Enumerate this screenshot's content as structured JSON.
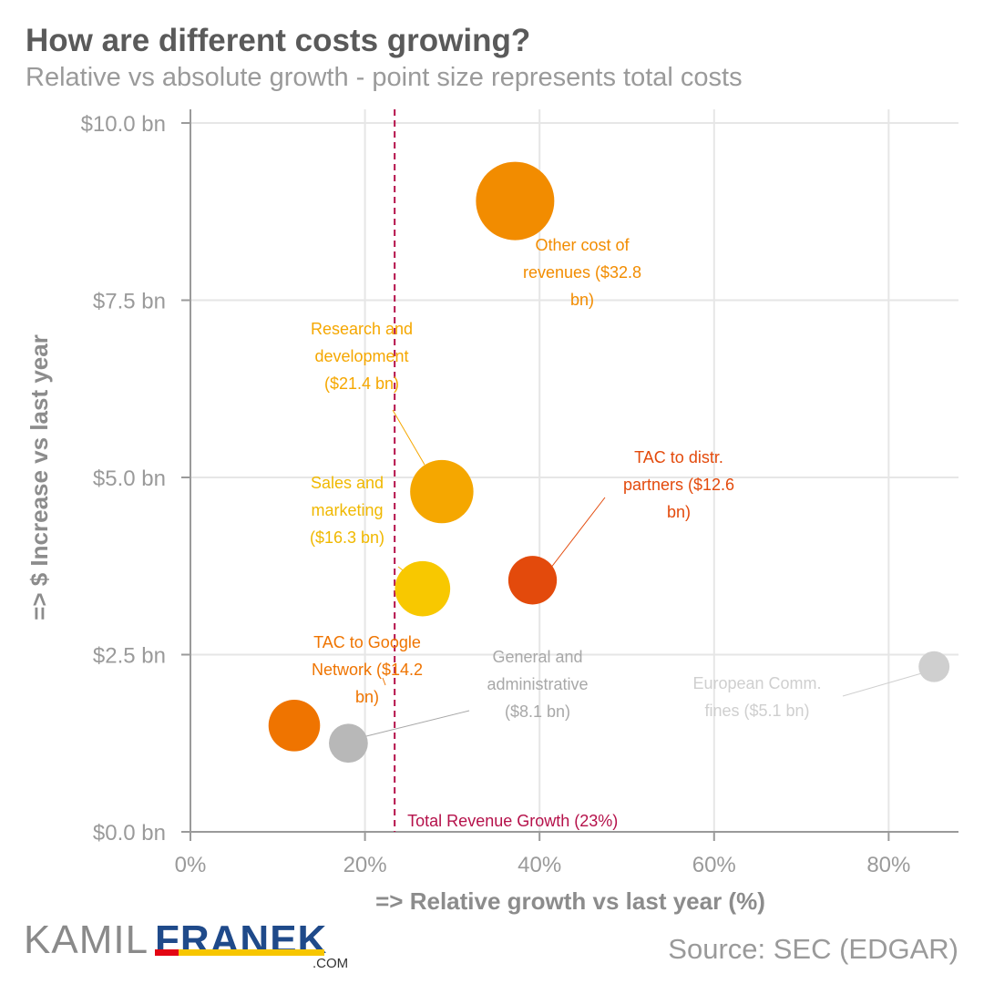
{
  "header": {
    "title": "How are different costs growing?",
    "subtitle": "Relative vs absolute growth - point size represents total costs"
  },
  "footer": {
    "source": "Source: SEC (EDGAR)",
    "logo_left": "KAMIL",
    "logo_right": "FRANEK",
    "logo_suffix": ".COM"
  },
  "chart_data": {
    "type": "scatter",
    "xlabel": "=> Relative growth vs last year (%)",
    "ylabel": "=> $ Increase vs last year",
    "xlim": [
      0,
      88
    ],
    "ylim": [
      0,
      10
    ],
    "x_ticks": [
      {
        "value": 0,
        "label": "0%"
      },
      {
        "value": 20,
        "label": "20%"
      },
      {
        "value": 40,
        "label": "40%"
      },
      {
        "value": 60,
        "label": "60%"
      },
      {
        "value": 80,
        "label": "80%"
      }
    ],
    "y_ticks": [
      {
        "value": 0,
        "label": "$0.0 bn"
      },
      {
        "value": 2.5,
        "label": "$2.5 bn"
      },
      {
        "value": 5,
        "label": "$5.0 bn"
      },
      {
        "value": 7.5,
        "label": "$7.5 bn"
      },
      {
        "value": 10,
        "label": "$10.0 bn"
      }
    ],
    "grid": true,
    "reference_line": {
      "x": 23.4,
      "label": "Total Revenue Growth (23%)",
      "color": "#b5114a"
    },
    "points": [
      {
        "label_lines": [
          "Other cost of",
          "revenues ($32.8",
          "bn)"
        ],
        "x": 37.2,
        "y": 8.9,
        "size_bn": 32.8,
        "color": "#f28c00",
        "label_color": "#f28c00"
      },
      {
        "label_lines": [
          "Research and",
          "development",
          "($21.4 bn)"
        ],
        "x": 28.8,
        "y": 4.8,
        "size_bn": 21.4,
        "color": "#f5a700",
        "label_color": "#f5a700"
      },
      {
        "label_lines": [
          "Sales and",
          "marketing",
          "($16.3 bn)"
        ],
        "x": 26.6,
        "y": 3.43,
        "size_bn": 16.3,
        "color": "#f8c800",
        "label_color": "#f0b800"
      },
      {
        "label_lines": [
          "TAC to distr.",
          "partners ($12.6",
          "bn)"
        ],
        "x": 39.2,
        "y": 3.55,
        "size_bn": 12.6,
        "color": "#e34a0c",
        "label_color": "#e34a0c"
      },
      {
        "label_lines": [
          "TAC to Google",
          "Network ($14.2",
          "bn)"
        ],
        "x": 11.9,
        "y": 1.5,
        "size_bn": 14.2,
        "color": "#ef7400",
        "label_color": "#ef7400"
      },
      {
        "label_lines": [
          "General and",
          "administrative",
          "($8.1 bn)"
        ],
        "x": 18.1,
        "y": 1.25,
        "size_bn": 8.1,
        "color": "#b8b8b8",
        "label_color": "#a8a8a8"
      },
      {
        "label_lines": [
          "European Comm.",
          "fines ($5.1 bn)"
        ],
        "x": 85.2,
        "y": 2.33,
        "size_bn": 5.1,
        "color": "#cfcfcf",
        "label_color": "#cfcfcf"
      }
    ]
  }
}
